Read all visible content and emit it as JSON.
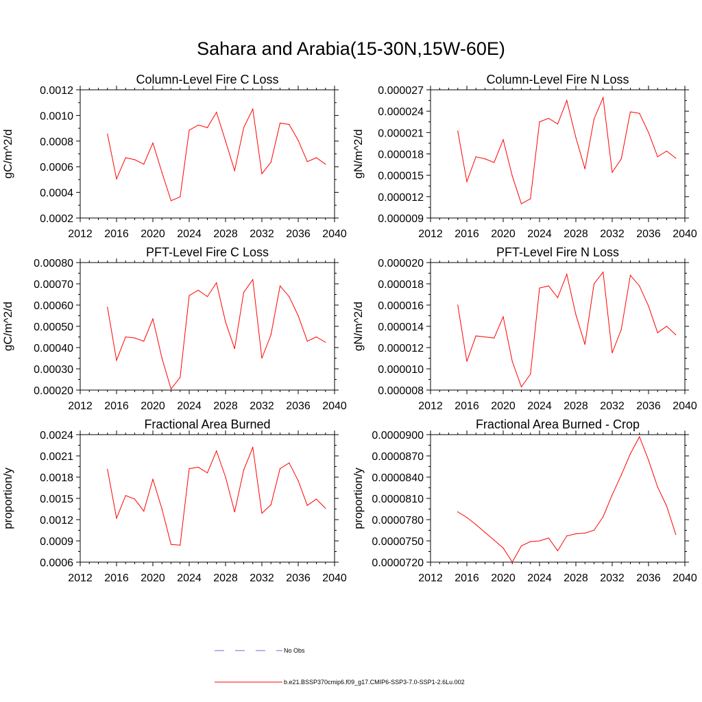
{
  "figure": {
    "title": "Sahara and Arabia(15-30N,15W-60E)"
  },
  "legend": {
    "entries": [
      {
        "label": "No Obs",
        "color": "#6b6bd6",
        "style": "dashed"
      },
      {
        "label": "b.e21.BSSP370cmip6.f09_g17.CMIP6-SSP3-7.0-SSP1-2.6Lu.002",
        "color": "#ff0000",
        "style": "solid"
      }
    ]
  },
  "chart_data": [
    {
      "type": "line",
      "title": "Column-Level Fire C Loss",
      "ylabel": "gC/m^2/d",
      "xlabel": "",
      "xlim": [
        2012,
        2040
      ],
      "xticks": [
        "2012",
        "2016",
        "2020",
        "2024",
        "2028",
        "2032",
        "2036",
        "2040"
      ],
      "ylim": [
        0.0002,
        0.0012
      ],
      "yticks": [
        "0.0002",
        "0.0004",
        "0.0006",
        "0.0008",
        "0.0010",
        "0.0012"
      ],
      "series": [
        {
          "color": "#ff0000",
          "x": [
            2015,
            2016,
            2017,
            2018,
            2019,
            2020,
            2021,
            2022,
            2023,
            2024,
            2025,
            2026,
            2027,
            2028,
            2029,
            2030,
            2031,
            2032,
            2033,
            2034,
            2035,
            2036,
            2037,
            2038,
            2039
          ],
          "y": [
            0.000855,
            0.000505,
            0.00067,
            0.000655,
            0.00062,
            0.000785,
            0.000555,
            0.000335,
            0.000365,
            0.000885,
            0.000925,
            0.000905,
            0.001025,
            0.0008,
            0.00057,
            0.000905,
            0.00105,
            0.000545,
            0.000635,
            0.00094,
            0.00093,
            0.000805,
            0.00064,
            0.00067,
            0.00062
          ]
        }
      ]
    },
    {
      "type": "line",
      "title": "Column-Level Fire N Loss",
      "ylabel": "gN/m^2/d",
      "xlabel": "",
      "xlim": [
        2012,
        2040
      ],
      "xticks": [
        "2012",
        "2016",
        "2020",
        "2024",
        "2028",
        "2032",
        "2036",
        "2040"
      ],
      "ylim": [
        9e-06,
        2.7e-05
      ],
      "yticks": [
        "0.000009",
        "0.000012",
        "0.000015",
        "0.000018",
        "0.000021",
        "0.000024",
        "0.000027"
      ],
      "series": [
        {
          "color": "#ff0000",
          "x": [
            2015,
            2016,
            2017,
            2018,
            2019,
            2020,
            2021,
            2022,
            2023,
            2024,
            2025,
            2026,
            2027,
            2028,
            2029,
            2030,
            2031,
            2032,
            2033,
            2034,
            2035,
            2036,
            2037,
            2038,
            2039
          ],
          "y": [
            2.12e-05,
            1.41e-05,
            1.76e-05,
            1.73e-05,
            1.68e-05,
            2e-05,
            1.49e-05,
            1.1e-05,
            1.17e-05,
            2.25e-05,
            2.3e-05,
            2.22e-05,
            2.55e-05,
            2.03e-05,
            1.59e-05,
            2.29e-05,
            2.59e-05,
            1.54e-05,
            1.73e-05,
            2.39e-05,
            2.37e-05,
            2.1e-05,
            1.76e-05,
            1.84e-05,
            1.74e-05
          ]
        }
      ]
    },
    {
      "type": "line",
      "title": "PFT-Level Fire C Loss",
      "ylabel": "gC/m^2/d",
      "xlabel": "",
      "xlim": [
        2012,
        2040
      ],
      "xticks": [
        "2012",
        "2016",
        "2020",
        "2024",
        "2028",
        "2032",
        "2036",
        "2040"
      ],
      "ylim": [
        0.0002,
        0.0008
      ],
      "yticks": [
        "0.00020",
        "0.00030",
        "0.00040",
        "0.00050",
        "0.00060",
        "0.00070",
        "0.00080"
      ],
      "series": [
        {
          "color": "#ff0000",
          "x": [
            2015,
            2016,
            2017,
            2018,
            2019,
            2020,
            2021,
            2022,
            2023,
            2024,
            2025,
            2026,
            2027,
            2028,
            2029,
            2030,
            2031,
            2032,
            2033,
            2034,
            2035,
            2036,
            2037,
            2038,
            2039
          ],
          "y": [
            0.00059,
            0.00034,
            0.00045,
            0.000445,
            0.00043,
            0.000535,
            0.00035,
            0.000205,
            0.00026,
            0.000645,
            0.00067,
            0.00064,
            0.000705,
            0.00052,
            0.000395,
            0.00066,
            0.00072,
            0.00035,
            0.00046,
            0.00069,
            0.00064,
            0.00055,
            0.00043,
            0.00045,
            0.000425
          ]
        }
      ]
    },
    {
      "type": "line",
      "title": "PFT-Level Fire N Loss",
      "ylabel": "gN/m^2/d",
      "xlabel": "",
      "xlim": [
        2012,
        2040
      ],
      "xticks": [
        "2012",
        "2016",
        "2020",
        "2024",
        "2028",
        "2032",
        "2036",
        "2040"
      ],
      "ylim": [
        8e-06,
        2e-05
      ],
      "yticks": [
        "0.000008",
        "0.000010",
        "0.000012",
        "0.000014",
        "0.000016",
        "0.000018",
        "0.000020"
      ],
      "series": [
        {
          "color": "#ff0000",
          "x": [
            2015,
            2016,
            2017,
            2018,
            2019,
            2020,
            2021,
            2022,
            2023,
            2024,
            2025,
            2026,
            2027,
            2028,
            2029,
            2030,
            2031,
            2032,
            2033,
            2034,
            2035,
            2036,
            2037,
            2038,
            2039
          ],
          "y": [
            1.6e-05,
            1.07e-05,
            1.31e-05,
            1.3e-05,
            1.29e-05,
            1.49e-05,
            1.07e-05,
            8.3e-06,
            9.5e-06,
            1.76e-05,
            1.78e-05,
            1.67e-05,
            1.89e-05,
            1.51e-05,
            1.23e-05,
            1.8e-05,
            1.91e-05,
            1.15e-05,
            1.37e-05,
            1.88e-05,
            1.78e-05,
            1.59e-05,
            1.34e-05,
            1.4e-05,
            1.32e-05
          ]
        }
      ]
    },
    {
      "type": "line",
      "title": "Fractional Area Burned",
      "ylabel": "proportion/y",
      "xlabel": "",
      "xlim": [
        2012,
        2040
      ],
      "xticks": [
        "2012",
        "2016",
        "2020",
        "2024",
        "2028",
        "2032",
        "2036",
        "2040"
      ],
      "ylim": [
        0.0006,
        0.0024
      ],
      "yticks": [
        "0.0006",
        "0.0009",
        "0.0012",
        "0.0015",
        "0.0018",
        "0.0021",
        "0.0024"
      ],
      "series": [
        {
          "color": "#ff0000",
          "x": [
            2015,
            2016,
            2017,
            2018,
            2019,
            2020,
            2021,
            2022,
            2023,
            2024,
            2025,
            2026,
            2027,
            2028,
            2029,
            2030,
            2031,
            2032,
            2033,
            2034,
            2035,
            2036,
            2037,
            2038,
            2039
          ],
          "y": [
            0.00191,
            0.00122,
            0.00154,
            0.00149,
            0.00132,
            0.00177,
            0.00135,
            0.00085,
            0.00084,
            0.00192,
            0.00194,
            0.00186,
            0.00217,
            0.0018,
            0.00131,
            0.0019,
            0.00222,
            0.00129,
            0.00141,
            0.00192,
            0.002,
            0.00175,
            0.0014,
            0.00149,
            0.00136
          ]
        }
      ]
    },
    {
      "type": "line",
      "title": "Fractional Area Burned - Crop",
      "ylabel": "proportion/y",
      "xlabel": "",
      "xlim": [
        2012,
        2040
      ],
      "xticks": [
        "2012",
        "2016",
        "2020",
        "2024",
        "2028",
        "2032",
        "2036",
        "2040"
      ],
      "ylim": [
        7.2e-05,
        9e-05
      ],
      "yticks": [
        "0.0000720",
        "0.0000750",
        "0.0000780",
        "0.0000810",
        "0.0000840",
        "0.0000870",
        "0.0000900"
      ],
      "series": [
        {
          "color": "#ff0000",
          "x": [
            2015,
            2016,
            2017,
            2018,
            2019,
            2020,
            2021,
            2022,
            2023,
            2024,
            2025,
            2026,
            2027,
            2028,
            2029,
            2030,
            2031,
            2032,
            2033,
            2034,
            2035,
            2036,
            2037,
            2038,
            2039
          ],
          "y": [
            7.91e-05,
            7.83e-05,
            7.73e-05,
            7.62e-05,
            7.51e-05,
            7.4e-05,
            7.2e-05,
            7.43e-05,
            7.49e-05,
            7.5e-05,
            7.54e-05,
            7.36e-05,
            7.57e-05,
            7.6e-05,
            7.61e-05,
            7.65e-05,
            7.84e-05,
            8.15e-05,
            8.43e-05,
            8.73e-05,
            8.97e-05,
            8.64e-05,
            8.26e-05,
            7.99e-05,
            7.59e-05
          ]
        }
      ]
    }
  ]
}
